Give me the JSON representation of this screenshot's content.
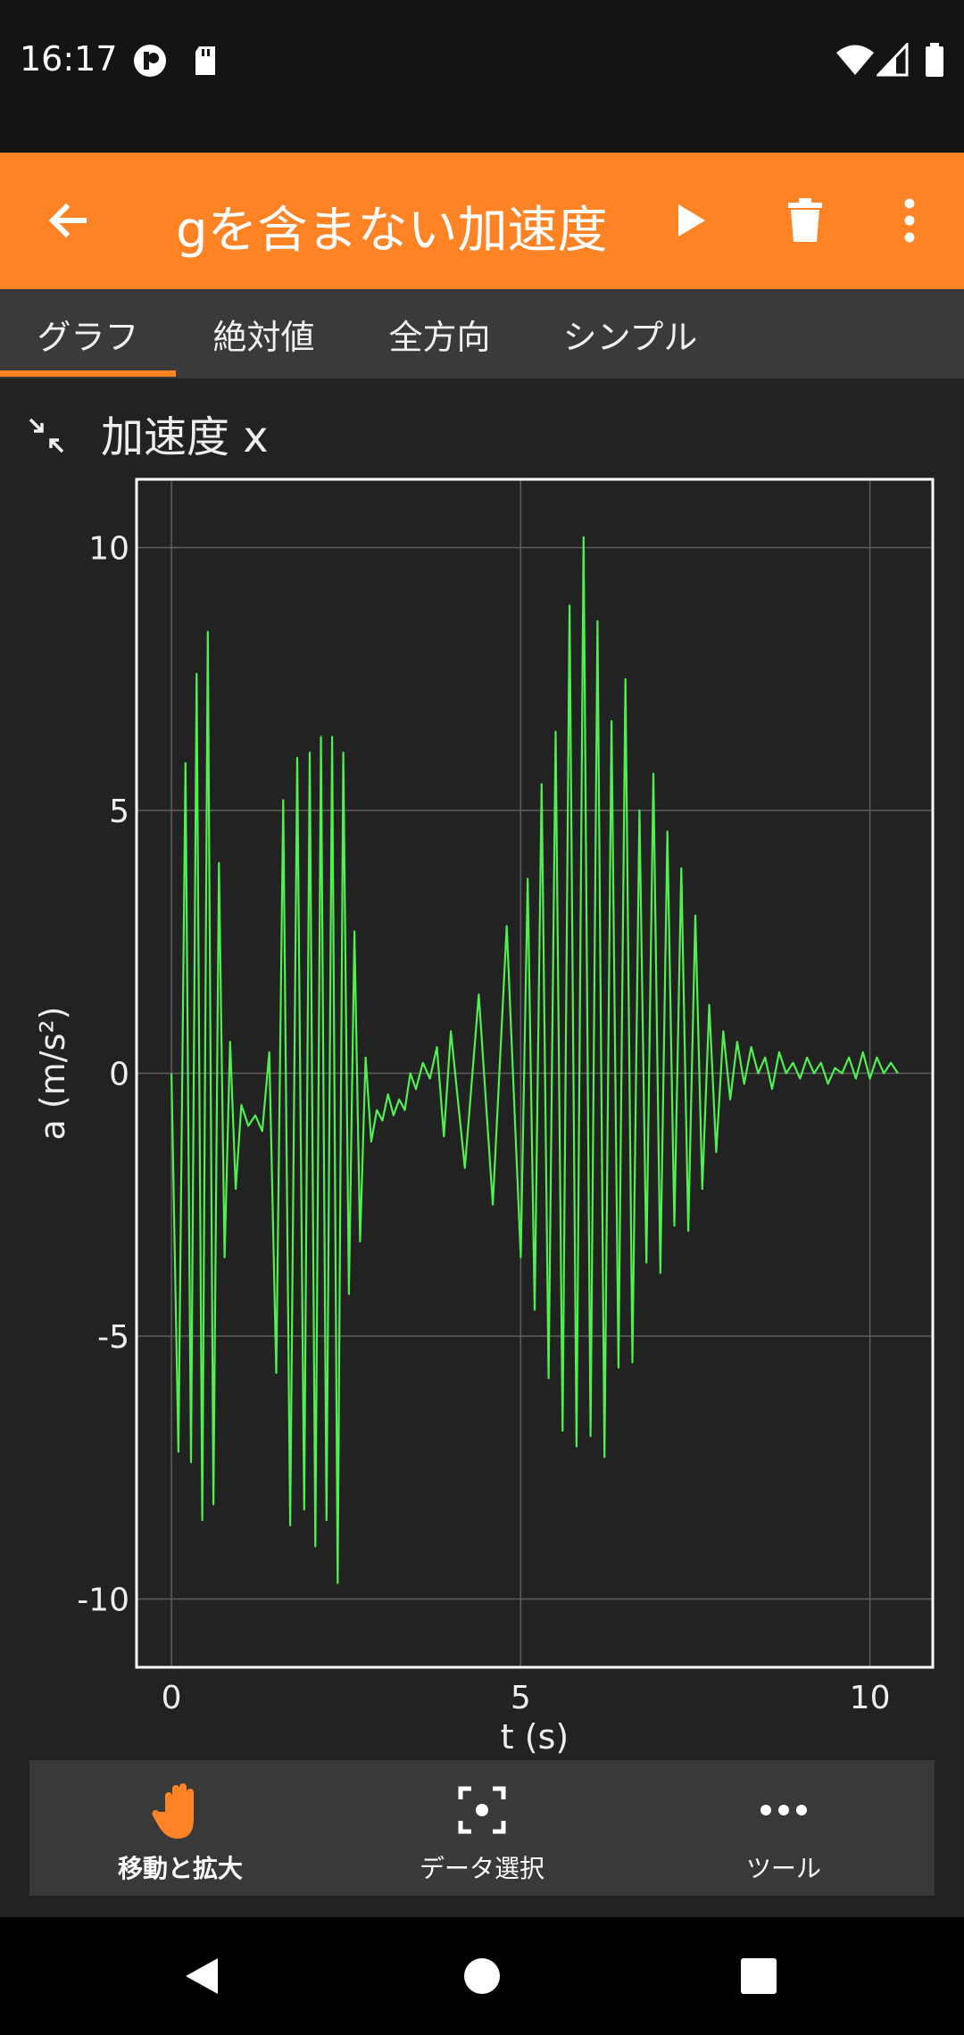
{
  "status": {
    "time": "16:17"
  },
  "toolbar": {
    "title": "gを含まない加速度",
    "icons": [
      "back-arrow-icon",
      "play-icon",
      "trash-icon",
      "more-vert-icon"
    ]
  },
  "tabs": [
    "グラフ",
    "絶対値",
    "全方向",
    "シンプル"
  ],
  "section": {
    "title": "加速度 x"
  },
  "chart_data": {
    "type": "line",
    "xlabel": "t (s)",
    "ylabel": "a (m/s²)",
    "xlim": [
      -0.5,
      10.9
    ],
    "ylim": [
      -11.3,
      11.3
    ],
    "xticks": [
      0,
      5,
      10
    ],
    "yticks": [
      10,
      5,
      0,
      -5,
      -10
    ],
    "grid": true,
    "line_color": "#4ff04f",
    "series": [
      {
        "x": [
          0,
          0.1,
          0.2,
          0.28,
          0.36,
          0.44,
          0.52,
          0.6,
          0.68,
          0.76,
          0.84,
          0.92,
          1.0,
          1.1,
          1.2,
          1.3,
          1.4,
          1.5,
          1.6,
          1.7,
          1.8,
          1.9,
          1.98,
          2.06,
          2.14,
          2.22,
          2.3,
          2.38,
          2.46,
          2.54,
          2.62,
          2.7,
          2.78,
          2.86,
          2.94,
          3.02,
          3.1,
          3.18,
          3.26,
          3.34,
          3.42,
          3.5,
          3.6,
          3.7,
          3.8,
          3.9,
          4.0,
          4.2,
          4.4,
          4.6,
          4.8,
          5.0,
          5.1,
          5.2,
          5.3,
          5.4,
          5.5,
          5.6,
          5.7,
          5.8,
          5.9,
          6.0,
          6.1,
          6.2,
          6.3,
          6.4,
          6.5,
          6.6,
          6.7,
          6.8,
          6.9,
          7.0,
          7.1,
          7.2,
          7.3,
          7.4,
          7.5,
          7.6,
          7.7,
          7.8,
          7.9,
          8.0,
          8.1,
          8.2,
          8.3,
          8.4,
          8.5,
          8.6,
          8.7,
          8.8,
          8.9,
          9.0,
          9.1,
          9.2,
          9.3,
          9.4,
          9.5,
          9.6,
          9.7,
          9.8,
          9.9,
          10.0,
          10.1,
          10.2,
          10.3,
          10.4
        ],
        "y": [
          0,
          -7.2,
          5.9,
          -7.4,
          7.6,
          -8.5,
          8.4,
          -8.2,
          4,
          -3.5,
          0.6,
          -2.2,
          -0.6,
          -1,
          -0.8,
          -1.1,
          0.4,
          -5.7,
          5.2,
          -8.6,
          6,
          -8.3,
          6.1,
          -9,
          6.4,
          -8.5,
          6.4,
          -9.7,
          6.1,
          -4.2,
          2.7,
          -3.2,
          0.3,
          -1.3,
          -0.7,
          -0.9,
          -0.4,
          -0.8,
          -0.5,
          -0.7,
          0,
          -0.3,
          0.2,
          -0.1,
          0.5,
          -1.2,
          0.8,
          -1.8,
          1.5,
          -2.5,
          2.8,
          -3.5,
          3.7,
          -4.5,
          5.5,
          -5.8,
          6.5,
          -6.8,
          8.9,
          -7.1,
          10.2,
          -6.9,
          8.6,
          -7.3,
          6.7,
          -5.6,
          7.5,
          -5.5,
          5,
          -3.6,
          5.7,
          -3.8,
          4.6,
          -2.9,
          3.9,
          -3.0,
          3.0,
          -2.2,
          1.3,
          -1.5,
          0.8,
          -0.5,
          0.6,
          -0.2,
          0.5,
          0,
          0.3,
          -0.3,
          0.4,
          0,
          0.2,
          -0.1,
          0.3,
          0,
          0.2,
          -0.2,
          0.1,
          0,
          0.3,
          -0.1,
          0.4,
          -0.1,
          0.3,
          0,
          0.2,
          0
        ]
      }
    ]
  },
  "bottom_tools": [
    {
      "label": "移動と拡大",
      "icon": "hand-icon",
      "active": true
    },
    {
      "label": "データ選択",
      "icon": "focus-select-icon",
      "active": false
    },
    {
      "label": "ツール",
      "icon": "more-horiz-icon",
      "active": false
    }
  ]
}
